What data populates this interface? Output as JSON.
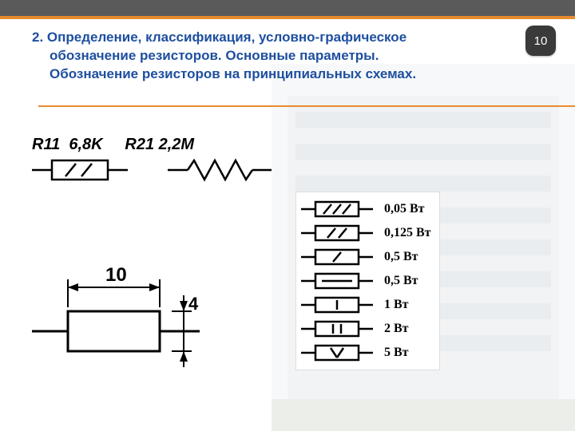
{
  "page_number": "10",
  "title": {
    "line1": "2. Определение, классификация, условно-графическое",
    "line2": "обозначение резисторов. Основные параметры.",
    "line3": "Обозначение резисторов на принципиальных схемах."
  },
  "symbols": {
    "r11_label": "R11  6,8K",
    "r21_label": "R21 2,2M"
  },
  "dimensions": {
    "width_label": "10",
    "height_label": "4"
  },
  "power_ratings": [
    {
      "label": "0,05 Вт",
      "marks": "///"
    },
    {
      "label": "0,125 Вт",
      "marks": "//"
    },
    {
      "label": "0,5 Вт",
      "marks": "/"
    },
    {
      "label": "0,5 Вт",
      "marks": "-"
    },
    {
      "label": "1 Вт",
      "marks": "I"
    },
    {
      "label": "2 Вт",
      "marks": "II"
    },
    {
      "label": "5 Вт",
      "marks": "V"
    }
  ],
  "colors": {
    "title": "#1e4fa0",
    "orange": "#e88b2e",
    "topbar": "#5a5a5a",
    "badge": "#3a3a3a",
    "stroke": "#000000"
  },
  "stroke_width": 2.5
}
